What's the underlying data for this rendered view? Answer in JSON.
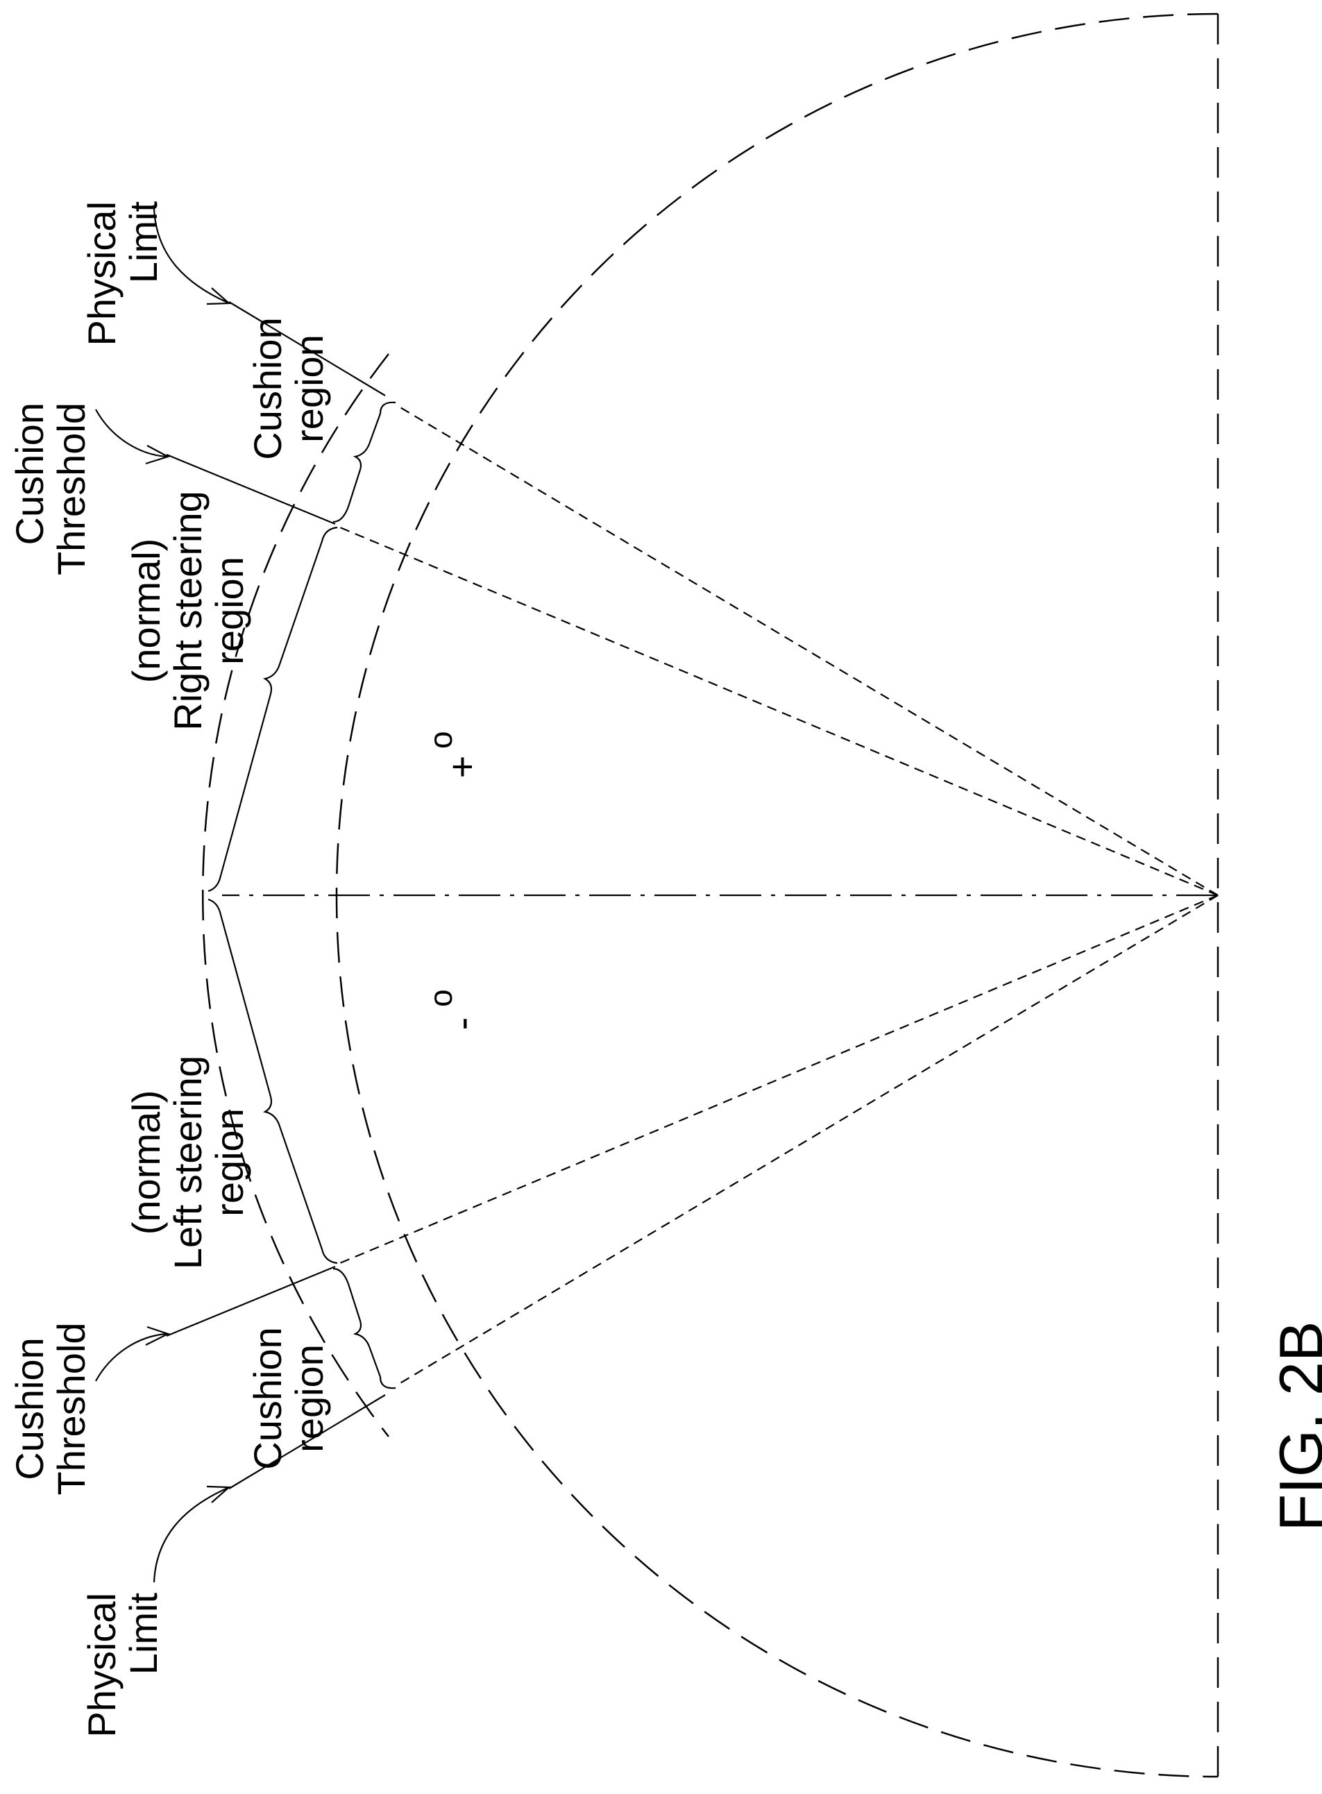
{
  "labels": {
    "physical_limit_top": [
      "Physical",
      "Limit"
    ],
    "cushion_threshold_top": [
      "Cushion",
      "Threshold"
    ],
    "cushion_region_top": [
      "Cushion",
      "region"
    ],
    "right_steering": [
      "(normal)",
      "Right steering",
      "region"
    ],
    "plus_angle": "+",
    "plus_degree": "o",
    "minus_angle": "-",
    "minus_degree": "o",
    "left_steering": [
      "(normal)",
      "Left steering",
      "region"
    ],
    "cushion_threshold_bottom": [
      "Cushion",
      "Threshold"
    ],
    "cushion_region_bottom": [
      "Cushion",
      "region"
    ],
    "physical_limit_bottom": [
      "Physical",
      "Limit"
    ],
    "figure_caption": "FIG. 2B"
  }
}
